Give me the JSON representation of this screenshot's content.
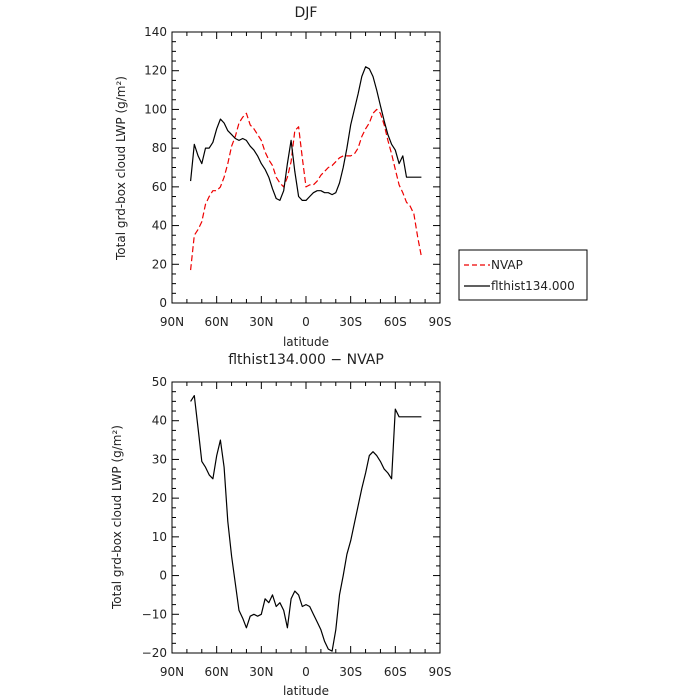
{
  "chart_data": [
    {
      "type": "line",
      "title": "DJF",
      "xlabel": "latitude",
      "ylabel": "Total grd-box cloud LWP (g/m²)",
      "xlim": [
        -90,
        90
      ],
      "ylim": [
        0,
        140
      ],
      "x_ticks": [
        {
          "value": -90,
          "label": "90N"
        },
        {
          "value": -60,
          "label": "60N"
        },
        {
          "value": -30,
          "label": "30N"
        },
        {
          "value": 0,
          "label": "0"
        },
        {
          "value": 30,
          "label": "30S"
        },
        {
          "value": 60,
          "label": "60S"
        },
        {
          "value": 90,
          "label": "90S"
        }
      ],
      "y_ticks": [
        0,
        20,
        40,
        60,
        80,
        100,
        120,
        140
      ],
      "legend_position": "right, outside plot, lower part",
      "series": [
        {
          "name": "NVAP",
          "color": "#ee0000",
          "dash": "dashed",
          "x": [
            -77.5,
            -75,
            -72.5,
            -70,
            -67.5,
            -65,
            -62.5,
            -60,
            -57.5,
            -55,
            -52.5,
            -50,
            -47.5,
            -45,
            -42.5,
            -40,
            -37.5,
            -35,
            -32.5,
            -30,
            -27.5,
            -25,
            -22.5,
            -20,
            -17.5,
            -15,
            -12.5,
            -10,
            -7.5,
            -5,
            -2.5,
            0,
            2.5,
            5,
            7.5,
            10,
            12.5,
            15,
            17.5,
            20,
            22.5,
            25,
            27.5,
            30,
            32.5,
            35,
            37.5,
            40,
            42.5,
            45,
            47.5,
            50,
            52.5,
            55,
            57.5,
            60,
            62.5,
            65,
            67.5,
            70,
            72.5,
            75,
            77.5
          ],
          "y": [
            17,
            35,
            38,
            42,
            51,
            55,
            58,
            58,
            60,
            65,
            72,
            81,
            86,
            93,
            96,
            98,
            92,
            90,
            87,
            84,
            78,
            74,
            71,
            65,
            62,
            60,
            65,
            73,
            89,
            91,
            75,
            60,
            61,
            61,
            63,
            66,
            68,
            70,
            71,
            73,
            75,
            76,
            76,
            76,
            77,
            80,
            86,
            90,
            93,
            98,
            100,
            98,
            92,
            84,
            77,
            69,
            61,
            57,
            52,
            50,
            46,
            34,
            24
          ]
        },
        {
          "name": "flthist134.000",
          "color": "#000000",
          "dash": "solid",
          "x": [
            -77.5,
            -75,
            -72.5,
            -70,
            -67.5,
            -65,
            -62.5,
            -60,
            -57.5,
            -55,
            -52.5,
            -50,
            -47.5,
            -45,
            -42.5,
            -40,
            -37.5,
            -35,
            -32.5,
            -30,
            -27.5,
            -25,
            -22.5,
            -20,
            -17.5,
            -15,
            -12.5,
            -10,
            -7.5,
            -5,
            -2.5,
            0,
            2.5,
            5,
            7.5,
            10,
            12.5,
            15,
            17.5,
            20,
            22.5,
            25,
            27.5,
            30,
            32.5,
            35,
            37.5,
            40,
            42.5,
            45,
            47.5,
            50,
            52.5,
            55,
            57.5,
            60,
            62.5,
            65,
            67.5,
            70,
            72.5,
            75,
            77.5
          ],
          "y": [
            63,
            82,
            76,
            72,
            80,
            80,
            83,
            90,
            95,
            93,
            89,
            87,
            85,
            84,
            85,
            84,
            81,
            79,
            76,
            72,
            69,
            65,
            59,
            54,
            53,
            58,
            72,
            84,
            68,
            55,
            53,
            53,
            55,
            57,
            58,
            58,
            57,
            57,
            56,
            57,
            62,
            70,
            80,
            92,
            100,
            108,
            117,
            122,
            121,
            117,
            110,
            102,
            94,
            87,
            82,
            79,
            72,
            76,
            65,
            65,
            65,
            65,
            65
          ]
        }
      ]
    },
    {
      "type": "line",
      "title": "flthist134.000 − NVAP",
      "xlabel": "latitude",
      "ylabel": "Total grd-box cloud LWP (g/m²)",
      "xlim": [
        -90,
        90
      ],
      "ylim": [
        -20,
        50
      ],
      "x_ticks": [
        {
          "value": -90,
          "label": "90N"
        },
        {
          "value": -60,
          "label": "60N"
        },
        {
          "value": -30,
          "label": "30N"
        },
        {
          "value": 0,
          "label": "0"
        },
        {
          "value": 30,
          "label": "30S"
        },
        {
          "value": 60,
          "label": "60S"
        },
        {
          "value": 90,
          "label": "90S"
        }
      ],
      "y_ticks": [
        -20,
        -10,
        0,
        10,
        20,
        30,
        40,
        50
      ],
      "series": [
        {
          "color": "#000000",
          "dash": "solid",
          "x": [
            -77.5,
            -75,
            -72.5,
            -70,
            -67.5,
            -65,
            -62.5,
            -60,
            -57.5,
            -55,
            -52.5,
            -50,
            -47.5,
            -45,
            -42.5,
            -40,
            -37.5,
            -35,
            -32.5,
            -30,
            -27.5,
            -25,
            -22.5,
            -20,
            -17.5,
            -15,
            -12.5,
            -10,
            -7.5,
            -5,
            -2.5,
            0,
            2.5,
            5,
            7.5,
            10,
            12.5,
            15,
            17.5,
            20,
            22.5,
            25,
            27.5,
            30,
            32.5,
            35,
            37.5,
            40,
            42.5,
            45,
            47.5,
            50,
            52.5,
            55,
            57.5,
            60,
            62.5,
            65,
            67.5,
            70,
            72.5,
            75,
            77.5
          ],
          "y": [
            45,
            46.5,
            38,
            29.5,
            28,
            26,
            25,
            31,
            35,
            28,
            14,
            5,
            -2,
            -9,
            -11,
            -13.5,
            -10.5,
            -10,
            -10.5,
            -10,
            -6,
            -7,
            -5,
            -8,
            -7,
            -9,
            -13.5,
            -6,
            -4,
            -5,
            -8,
            -7.5,
            -8,
            -10,
            -12,
            -14,
            -17,
            -19,
            -19.5,
            -14,
            -5,
            0,
            5.5,
            9,
            13.5,
            18,
            22.5,
            26.5,
            31,
            32,
            31,
            29.5,
            27.5,
            26.5,
            25,
            43,
            41,
            41,
            41,
            41,
            41,
            41,
            41
          ]
        }
      ]
    }
  ],
  "legend": {
    "nvap_label": "NVAP",
    "model_label": "flthist134.000"
  }
}
